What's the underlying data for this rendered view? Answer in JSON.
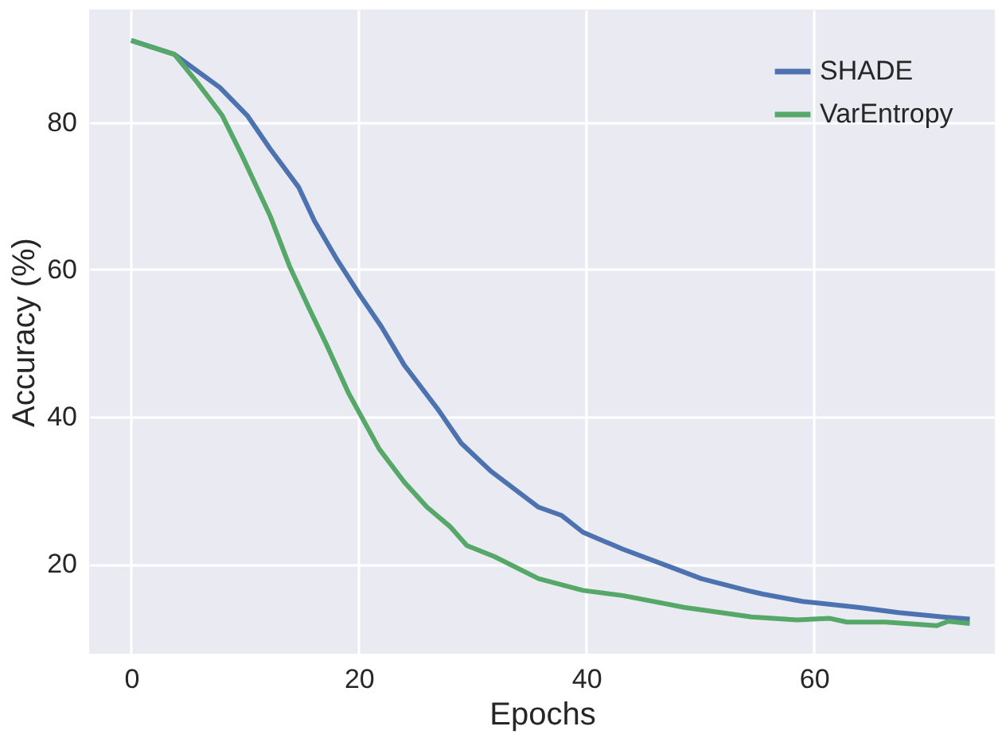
{
  "chart_data": {
    "type": "line",
    "xlabel": "Epochs",
    "ylabel": "Accuracy (%)",
    "xlim": [
      -3.7,
      75.9
    ],
    "ylim": [
      7.8,
      95.3
    ],
    "xticks": [
      0,
      20,
      40,
      60
    ],
    "yticks": [
      20,
      40,
      60,
      80
    ],
    "grid": true,
    "legend": "top right",
    "line_style": "solid",
    "marker": "none",
    "series": [
      {
        "name": "SHADE",
        "color": "#4c72b0",
        "x": [
          0,
          3.8,
          7.8,
          10.2,
          12.2,
          14.7,
          16.1,
          18.1,
          20.1,
          22,
          24,
          27,
          29,
          31.6,
          35.8,
          37.8,
          39.7,
          43.2,
          47.7,
          50.1,
          54.1,
          55.5,
          59,
          63.9,
          67.4,
          71.3,
          73.7
        ],
        "values": [
          91.1,
          89.2,
          84.7,
          80.9,
          76.4,
          71.2,
          66.6,
          61.3,
          56.5,
          52.2,
          47,
          40.9,
          36.4,
          32.6,
          27.7,
          26.6,
          24.3,
          22,
          19.4,
          18,
          16.4,
          15.9,
          14.9,
          14.1,
          13.4,
          12.8,
          12.5
        ]
      },
      {
        "name": "VarEntropy",
        "color": "#55a868",
        "x": [
          0,
          3.8,
          5.8,
          8,
          9.7,
          12.2,
          13.9,
          15.7,
          17.1,
          19.1,
          21.8,
          24,
          26,
          28,
          29.5,
          31.9,
          35.8,
          39.7,
          43.2,
          48.6,
          54.5,
          58.5,
          61.4,
          62.9,
          66.3,
          70.8,
          71.8,
          73.7
        ],
        "values": [
          91.1,
          89.2,
          85.4,
          80.9,
          75.6,
          67.3,
          60.5,
          54.5,
          50,
          43.2,
          35.6,
          31.1,
          27.7,
          25.1,
          22.5,
          21,
          18,
          16.4,
          15.7,
          14.1,
          12.8,
          12.4,
          12.6,
          12.1,
          12.1,
          11.6,
          12.2,
          11.9
        ]
      }
    ]
  }
}
